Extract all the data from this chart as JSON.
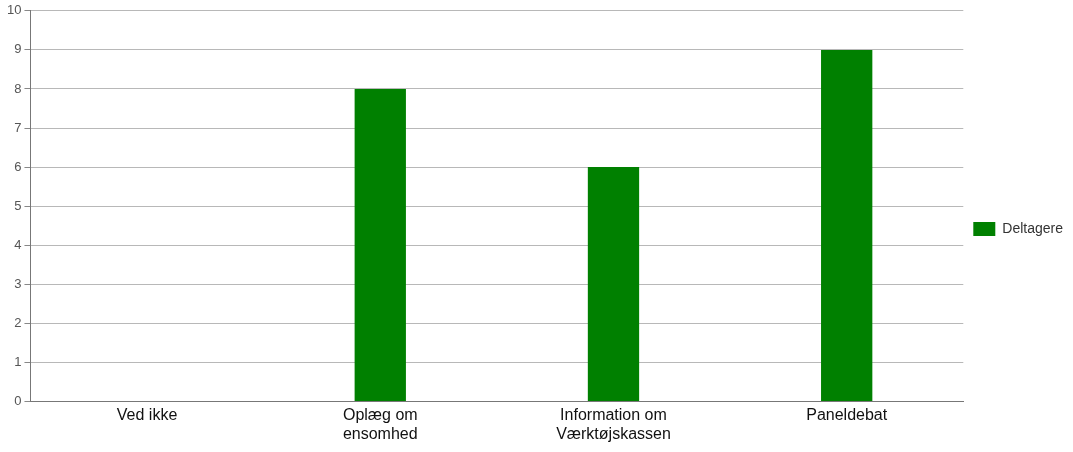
{
  "chart_data": {
    "type": "bar",
    "categories": [
      "Ved ikke",
      "Oplæg om ensomhed",
      "Information om Værktøjskassen",
      "Paneldebat"
    ],
    "series": [
      {
        "name": "Deltagere",
        "color": "#008000",
        "values": [
          0,
          8,
          6,
          9
        ]
      }
    ],
    "ylim": [
      0,
      10
    ],
    "yticks": [
      0,
      1,
      2,
      3,
      4,
      5,
      6,
      7,
      8,
      9,
      10
    ],
    "grid": "y",
    "legend": "right"
  }
}
